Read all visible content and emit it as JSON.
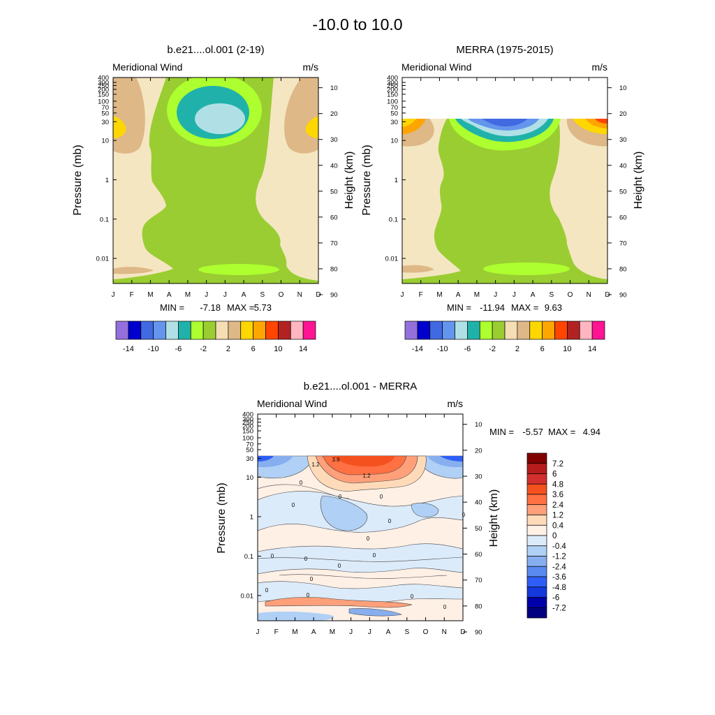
{
  "page_title": "-10.0 to  10.0",
  "chart_data": [
    {
      "id": "p1",
      "type": "contour",
      "title": "b.e21....ol.001 (2-19)",
      "left_label": "Meridional Wind",
      "right_label": "m/s",
      "ylabel": "Pressure (mb)",
      "ylabel_right": "Height (km)",
      "months": [
        "J",
        "F",
        "M",
        "A",
        "M",
        "J",
        "J",
        "A",
        "S",
        "O",
        "N",
        "D"
      ],
      "pressure_ticks": [
        "0.01",
        "0.1",
        "1",
        "10",
        "30",
        "50",
        "70",
        "100",
        "150",
        "200",
        "250",
        "300",
        "400"
      ],
      "height_ticks": [
        "90",
        "80",
        "70",
        "60",
        "50",
        "40",
        "30",
        "20",
        "10"
      ],
      "stats": {
        "min_label": "MIN =",
        "min": "-7.18",
        "max_label": "MAX =",
        "max": "5.73"
      },
      "data_top": "full",
      "regions": [
        {
          "name": "equatorial southward band -2 to 0",
          "level": "-2"
        },
        {
          "name": "summer mesosphere core -6 to -4",
          "level": "-6"
        },
        {
          "name": "winter mesosphere 2 to 4",
          "level": "2"
        },
        {
          "name": "winter mesosphere peak 4 to 6",
          "level": "6"
        }
      ],
      "colorbar": {
        "colors": [
          "#9370DB",
          "#0000CD",
          "#4169E1",
          "#6495ED",
          "#B0E0E6",
          "#20B2AA",
          "#ADFF2F",
          "#9ACD32",
          "#F5DEB3",
          "#DEB887",
          "#FFD700",
          "#FFA500",
          "#FF4500",
          "#B22222",
          "#FFB6C1",
          "#FF1493"
        ],
        "labels": [
          "-14",
          "-10",
          "-6",
          "-2",
          "2",
          "6",
          "10",
          "14"
        ]
      }
    },
    {
      "id": "p2",
      "type": "contour",
      "title": "MERRA (1975-2015)",
      "left_label": "Meridional Wind",
      "right_label": "m/s",
      "ylabel": "Pressure (mb)",
      "ylabel_right": "Height (km)",
      "months": [
        "J",
        "F",
        "M",
        "A",
        "M",
        "J",
        "J",
        "A",
        "S",
        "O",
        "N",
        "D"
      ],
      "pressure_ticks": [
        "0.01",
        "0.1",
        "1",
        "10",
        "30",
        "50",
        "70",
        "100",
        "150",
        "200",
        "250",
        "300",
        "400"
      ],
      "height_ticks": [
        "90",
        "80",
        "70",
        "60",
        "50",
        "40",
        "30",
        "20",
        "10"
      ],
      "stats": {
        "min_label": "MIN =",
        "min": "-11.94",
        "max_label": "MAX =",
        "max": "9.63"
      },
      "data_top": "0.02 mb",
      "colorbar": {
        "colors": [
          "#9370DB",
          "#0000CD",
          "#4169E1",
          "#6495ED",
          "#B0E0E6",
          "#20B2AA",
          "#ADFF2F",
          "#9ACD32",
          "#F5DEB3",
          "#DEB887",
          "#FFD700",
          "#FFA500",
          "#FF4500",
          "#B22222",
          "#FFB6C1",
          "#FF1493"
        ],
        "labels": [
          "-14",
          "-10",
          "-6",
          "-2",
          "2",
          "6",
          "10",
          "14"
        ]
      }
    },
    {
      "id": "p3",
      "type": "contour",
      "title": "b.e21....ol.001 - MERRA",
      "left_label": "Meridional Wind",
      "right_label": "m/s",
      "ylabel": "Pressure (mb)",
      "ylabel_right": "Height (km)",
      "months": [
        "J",
        "F",
        "M",
        "A",
        "M",
        "J",
        "J",
        "A",
        "S",
        "O",
        "N",
        "D"
      ],
      "pressure_ticks": [
        "0.01",
        "0.1",
        "1",
        "10",
        "30",
        "50",
        "70",
        "100",
        "150",
        "200",
        "250",
        "300",
        "400"
      ],
      "height_ticks": [
        "90",
        "80",
        "70",
        "60",
        "50",
        "40",
        "30",
        "20",
        "10"
      ],
      "stats": {
        "min_label": "MIN =",
        "min": "-5.57",
        "max_label": "MAX =",
        "max": "4.94"
      },
      "contour_labels": [
        "3.6",
        "1.2",
        "1.2",
        "0",
        "0",
        "0",
        "0",
        "0",
        "0",
        "0",
        "0",
        "0",
        "0",
        "0",
        "0",
        "0",
        "0",
        "0",
        "0"
      ],
      "colorbar": {
        "colors": [
          "#800000",
          "#B71C1C",
          "#D32F2F",
          "#F4511E",
          "#FF7043",
          "#FFA07A",
          "#FFDAB9",
          "#FFF0E6",
          "#DCEBFA",
          "#B0D0F5",
          "#87AEEF",
          "#5A8AF0",
          "#2E5EF5",
          "#1438DC",
          "#0000AA",
          "#000080"
        ],
        "labels": [
          "7.2",
          "6",
          "4.8",
          "3.6",
          "2.4",
          "1.2",
          "0.4",
          "0",
          "-0.4",
          "-1.2",
          "-2.4",
          "-3.6",
          "-4.8",
          "-6",
          "-7.2"
        ]
      }
    }
  ]
}
